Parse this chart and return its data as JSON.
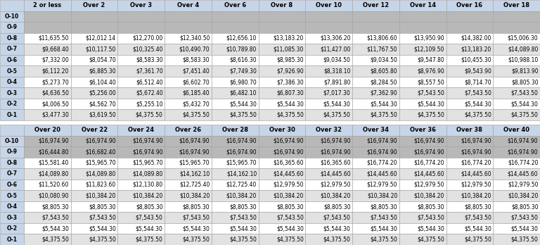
{
  "top_headers": [
    "",
    "2 or less",
    "Over 2",
    "Over 3",
    "Over 4",
    "Over 6",
    "Over 8",
    "Over 10",
    "Over 12",
    "Over 14",
    "Over 16",
    "Over 18"
  ],
  "bottom_headers": [
    "",
    "Over 20",
    "Over 22",
    "Over 24",
    "Over 26",
    "Over 28",
    "Over 30",
    "Over 32",
    "Over 34",
    "Over 36",
    "Over 38",
    "Over 40"
  ],
  "row_labels": [
    "O-10",
    "O-9",
    "O-8",
    "O-7",
    "O-6",
    "O-5",
    "O-4",
    "O-3",
    "O-2",
    "O-1"
  ],
  "top_data": [
    [
      "",
      "",
      "",
      "",
      "",
      "",
      "",
      "",
      "",
      "",
      ""
    ],
    [
      "",
      "",
      "",
      "",
      "",
      "",
      "",
      "",
      "",
      "",
      ""
    ],
    [
      "$11,635.50",
      "$12,012.14",
      "$12,270.00",
      "$12,340.50",
      "$12,656.10",
      "$13,183.20",
      "$13,306.20",
      "$13,806.60",
      "$13,950.90",
      "$14,382.00",
      "$15,006.30"
    ],
    [
      "$9,668.40",
      "$10,117.50",
      "$10,325.40",
      "$10,490.70",
      "$10,789.80",
      "$11,085.30",
      "$11,427.00",
      "$11,767.50",
      "$12,109.50",
      "$13,183.20",
      "$14,089.80"
    ],
    [
      "$7,332.00",
      "$8,054.70",
      "$8,583.30",
      "$8,583.30",
      "$8,616.30",
      "$8,985.30",
      "$9,034.50",
      "$9,034.50",
      "$9,547.80",
      "$10,455.30",
      "$10,988.10"
    ],
    [
      "$6,112.20",
      "$6,885.30",
      "$7,361.70",
      "$7,451.40",
      "$7,749.30",
      "$7,926.90",
      "$8,318.10",
      "$8,605.80",
      "$8,976.90",
      "$9,543.90",
      "$9,813.90"
    ],
    [
      "$5,273.70",
      "$6,104.40",
      "$6,512.40",
      "$6,602.70",
      "$6,980.70",
      "$7,386.30",
      "$7,891.80",
      "$8,284.50",
      "$8,557.50",
      "$8,714.70",
      "$8,805.30"
    ],
    [
      "$4,636.50",
      "$5,256.00",
      "$5,672.40",
      "$6,185.40",
      "$6,482.10",
      "$6,807.30",
      "$7,017.30",
      "$7,362.90",
      "$7,543.50",
      "$7,543.50",
      "$7,543.50"
    ],
    [
      "$4,006.50",
      "$4,562.70",
      "$5,255.10",
      "$5,432.70",
      "$5,544.30",
      "$5,544.30",
      "$5,544.30",
      "$5,544.30",
      "$5,544.30",
      "$5,544.30",
      "$5,544.30"
    ],
    [
      "$3,477.30",
      "$3,619.50",
      "$4,375.50",
      "$4,375.50",
      "$4,375.50",
      "$4,375.50",
      "$4,375.50",
      "$4,375.50",
      "$4,375.50",
      "$4,375.50",
      "$4,375.50"
    ]
  ],
  "bottom_data": [
    [
      "$16,974.90",
      "$16,974.90",
      "$16,974.90",
      "$16,974.90",
      "$16,974.90",
      "$16,974.90",
      "$16,974.90",
      "$16,974.90",
      "$16,974.90",
      "$16,974.90",
      "$16,974.90"
    ],
    [
      "$16,444.80",
      "$16,682.40",
      "$16,974.90",
      "$16,974.90",
      "$16,974.90",
      "$16,974.90",
      "$16,974.90",
      "$16,974.90",
      "$16,974.90",
      "$16,974.90",
      "$16,974.90"
    ],
    [
      "$15,581.40",
      "$15,965.70",
      "$15,965.70",
      "$15,965.70",
      "$15,965.70",
      "$16,365.60",
      "$16,365.60",
      "$16,774.20",
      "$16,774.20",
      "$16,774.20",
      "$16,774.20"
    ],
    [
      "$14,089.80",
      "$14,089.80",
      "$14,089.80",
      "$14,162.10",
      "$14,162.10",
      "$14,445.60",
      "$14,445.60",
      "$14,445.60",
      "$14,445.60",
      "$14,445.60",
      "$14,445.60"
    ],
    [
      "$11,520.60",
      "$11,823.60",
      "$12,130.80",
      "$12,725.40",
      "$12,725.40",
      "$12,979.50",
      "$12,979.50",
      "$12,979.50",
      "$12,979.50",
      "$12,979.50",
      "$12,979.50"
    ],
    [
      "$10,080.90",
      "$10,384.20",
      "$10,384.20",
      "$10,384.20",
      "$10,384.20",
      "$10,384.20",
      "$10,384.20",
      "$10,384.20",
      "$10,384.20",
      "$10,384.20",
      "$10,384.20"
    ],
    [
      "$8,805.30",
      "$8,805.30",
      "$8,805.30",
      "$8,805.30",
      "$8,805.30",
      "$8,805.30",
      "$8,805.30",
      "$8,805.30",
      "$8,805.30",
      "$8,805.30",
      "$8,805.30"
    ],
    [
      "$7,543.50",
      "$7,543.50",
      "$7,543.50",
      "$7,543.50",
      "$7,543.50",
      "$7,543.50",
      "$7,543.50",
      "$7,543.50",
      "$7,543.50",
      "$7,543.50",
      "$7,543.50"
    ],
    [
      "$5,544.30",
      "$5,544.30",
      "$5,544.30",
      "$5,544.30",
      "$5,544.30",
      "$5,544.30",
      "$5,544.30",
      "$5,544.30",
      "$5,544.30",
      "$5,544.30",
      "$5,544.30"
    ],
    [
      "$4,375.50",
      "$4,375.50",
      "$4,375.50",
      "$4,375.50",
      "$4,375.50",
      "$4,375.50",
      "$4,375.50",
      "$4,375.50",
      "$4,375.50",
      "$4,375.50",
      "$4,375.50"
    ]
  ],
  "header_bg": "#c6d5e8",
  "row_label_bg": "#c6d5e8",
  "alt_row_bg": "#e2e2e2",
  "white_bg": "#ffffff",
  "empty_row_bg": "#b8b8b8",
  "font_size": 5.5,
  "header_font_size": 6.0,
  "border_color": "#a0a0a0",
  "figsize": [
    7.68,
    3.48
  ],
  "dpi": 100
}
